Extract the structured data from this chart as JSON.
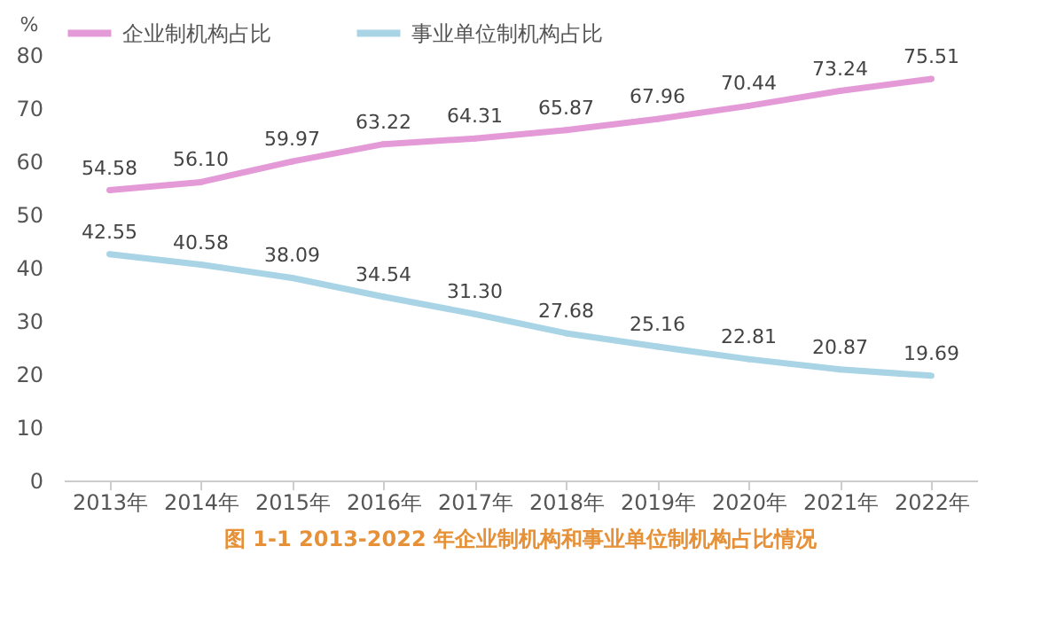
{
  "chart_data": {
    "type": "line",
    "ylabel": "%",
    "categories": [
      "2013年",
      "2014年",
      "2015年",
      "2016年",
      "2017年",
      "2018年",
      "2019年",
      "2020年",
      "2021年",
      "2022年"
    ],
    "series": [
      {
        "name": "企业制机构占比",
        "color": "#e59ad8",
        "values": [
          54.58,
          56.1,
          59.97,
          63.22,
          64.31,
          65.87,
          67.96,
          70.44,
          73.24,
          75.51
        ],
        "value_labels": [
          "54.58",
          "56.10",
          "59.97",
          "63.22",
          "64.31",
          "65.87",
          "67.96",
          "70.44",
          "73.24",
          "75.51"
        ]
      },
      {
        "name": "事业单位制机构占比",
        "color": "#a9d4e6",
        "values": [
          42.55,
          40.58,
          38.09,
          34.54,
          31.3,
          27.68,
          25.16,
          22.81,
          20.87,
          19.69
        ],
        "value_labels": [
          "42.55",
          "40.58",
          "38.09",
          "34.54",
          "31.30",
          "27.68",
          "25.16",
          "22.81",
          "20.87",
          "19.69"
        ]
      }
    ],
    "data_labels": true,
    "ylim": [
      0,
      80
    ],
    "yticks": [
      0,
      10,
      20,
      30,
      40,
      50,
      60,
      70,
      80
    ],
    "grid": false,
    "legend": "top",
    "marker": "circle",
    "line_style": "solid",
    "annotations": [
      "图 1-1    2013-2022 年企业制机构和事业单位制机构占比情况"
    ]
  }
}
